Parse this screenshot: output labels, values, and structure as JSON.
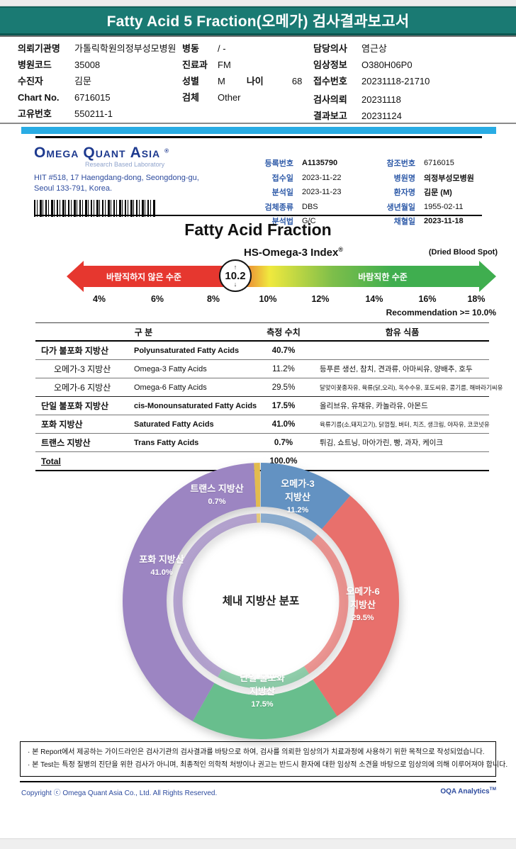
{
  "header": {
    "title": "Fatty Acid 5 Fraction(오메가) 검사결과보고서"
  },
  "patient": {
    "col1": [
      {
        "label": "의뢰기관명",
        "value": "가톨릭학원의정부성모병원"
      },
      {
        "label": "병원코드",
        "value": "35008"
      },
      {
        "label": "수진자",
        "value": "김문"
      },
      {
        "label": "Chart No.",
        "value": "6716015"
      },
      {
        "label": "고유번호",
        "value": "550211-1"
      }
    ],
    "col2": [
      {
        "label": "병동",
        "value": "/ -"
      },
      {
        "label": "진료과",
        "value": "FM"
      },
      {
        "label": "성별",
        "value": "M",
        "label2": "나이",
        "value2": "68"
      },
      {
        "label": "검체",
        "value": "Other"
      }
    ],
    "col3": [
      {
        "label": "담당의사",
        "value": "염근상"
      },
      {
        "label": "임상정보",
        "value": "O380H06P0"
      },
      {
        "label": "접수번호",
        "value": "20231118-21710"
      },
      {
        "label": "검사의뢰",
        "value": "20231118",
        "gap": true
      },
      {
        "label": "결과보고",
        "value": "20231124"
      }
    ]
  },
  "lab": {
    "logo_text": "OMEGA QUANT ASIA",
    "logo_reg": "®",
    "tagline": "Research Based Laboratory",
    "address": [
      "HIT #518, 17 Haengdang-dong, Seongdong-gu,",
      "Seoul 133-791, Korea."
    ],
    "col1": [
      {
        "label": "등록번호",
        "value": "A1135790",
        "bold": true
      },
      {
        "label": "접수일",
        "value": "2023-11-22"
      },
      {
        "label": "분석일",
        "value": "2023-11-23"
      },
      {
        "label": "검체종류",
        "value": "DBS"
      },
      {
        "label": "분석법",
        "value": "G/C"
      }
    ],
    "col2": [
      {
        "label": "참조번호",
        "value": "6716015"
      },
      {
        "label": "병원명",
        "value": "의정부성모병원",
        "bold": true
      },
      {
        "label": "환자명",
        "value": "김문 (M)",
        "bold": true
      },
      {
        "label": "생년월일",
        "value": "1955-02-11"
      },
      {
        "label": "채혈일",
        "value": "2023-11-18",
        "bold": true
      }
    ]
  },
  "section": {
    "title": "Fatty Acid Fraction",
    "method": "(Dried Blood Spot)"
  },
  "chart_data": [
    {
      "type": "pie",
      "subtype": "donut",
      "title": "체내 지방산 분포",
      "categories": [
        "오메가-3 지방산",
        "오메가-6 지방산",
        "단일 불포화 지방산",
        "포화 지방산",
        "트랜스 지방산"
      ],
      "values": [
        11.2,
        29.5,
        17.5,
        41.0,
        0.7
      ],
      "colors": [
        "#6392c2",
        "#e8706c",
        "#68be8d",
        "#9c85c2",
        "#e2bb4e"
      ],
      "label_lines": [
        [
          "오메가-3",
          "지방산",
          "11.2%"
        ],
        [
          "오메가-6",
          "지방산",
          "29.5%"
        ],
        [
          "단일 불포화",
          "지방산",
          "17.5%"
        ],
        [
          "포화 지방산",
          "41.0%"
        ],
        [
          "트랜스 지방산",
          "0.7%"
        ]
      ],
      "legend_position": "on-slices",
      "start_angle_deg": 0,
      "direction": "clockwise"
    },
    {
      "type": "gauge",
      "title": "HS-Omega-3 Index",
      "title_reg": "®",
      "value": 10.2,
      "value_display": "10.2",
      "ticks": [
        "4%",
        "6%",
        "8%",
        "10%",
        "12%",
        "14%",
        "16%",
        "18%"
      ],
      "axis_range": [
        4,
        18
      ],
      "left_zone_label": "바람직하지 않은 수준",
      "right_zone_label": "바람직한 수준",
      "left_zone_color": "#e6372f",
      "right_zone_color": "#3fae4f",
      "recommendation": "Recommendation >= 10.0%"
    }
  ],
  "table": {
    "headers": [
      "구 분",
      "측정 수치",
      "함유 식품"
    ],
    "rows": [
      {
        "kor": "다가 불포화 지방산",
        "eng": "Polyunsaturated Fatty Acids",
        "value": "40.7%",
        "foods": "",
        "bold": true,
        "vbold": true
      },
      {
        "kor": "오메가-3 지방산",
        "eng": "Omega-3 Fatty Acids",
        "value": "11.2%",
        "foods": "등푸른 생선, 참치, 견과류, 아마씨유, 양배추, 호두",
        "indent": true
      },
      {
        "kor": "오메가-6 지방산",
        "eng": "Omega-6 Fatty Acids",
        "value": "29.5%",
        "foods": "달맞이꽃종자유, 육류(닭,오리), 옥수수유, 포도씨유, 콩기름, 해바라기씨유",
        "indent": true,
        "small": true,
        "heavy": true
      },
      {
        "kor": "단일 불포화 지방산",
        "eng": "cis-Monounsaturated Fatty Acids",
        "value": "17.5%",
        "foods": "올리브유, 유채유, 카놀라유, 아몬드",
        "bold": true,
        "vbold": true
      },
      {
        "kor": "포화 지방산",
        "eng": "Saturated Fatty Acids",
        "value": "41.0%",
        "foods": "육류기름(소,돼지고기), 닭껍질, 버터, 치즈, 생크림, 야자유, 코코넛유",
        "bold": true,
        "vbold": true,
        "small": true
      },
      {
        "kor": "트랜스 지방산",
        "eng": "Trans Fatty Acids",
        "value": "0.7%",
        "foods": "튀김, 쇼트닝, 마아가린, 빵, 과자, 케이크",
        "bold": true,
        "vbold": true
      },
      {
        "kor": "Total",
        "eng": "",
        "value": "100.0%",
        "foods": "",
        "bold": true,
        "vbold": true,
        "underline": true
      }
    ]
  },
  "notes": [
    "· 본 Report에서 제공하는 가이드라인은 검사기관의 검사결과를 바탕으로 하여, 검사를 의뢰한 임상의가 치료과정에 사용하기 위한 목적으로 작성되었습니다.",
    "· 본 Test는 특정 질병의 진단을 위한 검사가 아니며, 최종적인 의학적 처방이나 권고는 반드시 환자에 대한 임상적 소견을 바탕으로 임상의에 의해 이루어져야 합니다."
  ],
  "footer": {
    "copyright": "Copyright ⓒ Omega Quant Asia Co., Ltd.  All Rights Reserved.",
    "brand": "OQA Analytics",
    "brand_sup": "TM"
  }
}
